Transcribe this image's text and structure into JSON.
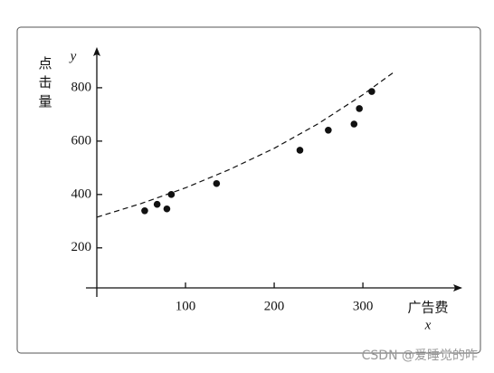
{
  "chart_data": {
    "type": "scatter",
    "y_label": "点击量",
    "y_symbol": "y",
    "x_label": "广告费",
    "x_symbol": "x",
    "x": [
      54,
      68,
      79,
      84,
      135,
      229,
      261,
      290,
      296,
      310
    ],
    "values": [
      339,
      363,
      346,
      400,
      441,
      566,
      641,
      664,
      722,
      786
    ],
    "color": "#111111",
    "fit_curve": {
      "x": [
        0,
        50,
        100,
        150,
        200,
        250,
        300,
        336
      ],
      "y": [
        315,
        366,
        425,
        494,
        573,
        666,
        774,
        861
      ]
    },
    "xlim": [
      0,
      406
    ],
    "ylim": [
      50,
      932
    ],
    "xticks": [
      100,
      200,
      300
    ],
    "yticks": [
      200,
      400,
      600,
      800
    ],
    "watermark": "CSDN @爱睡觉的咋"
  }
}
